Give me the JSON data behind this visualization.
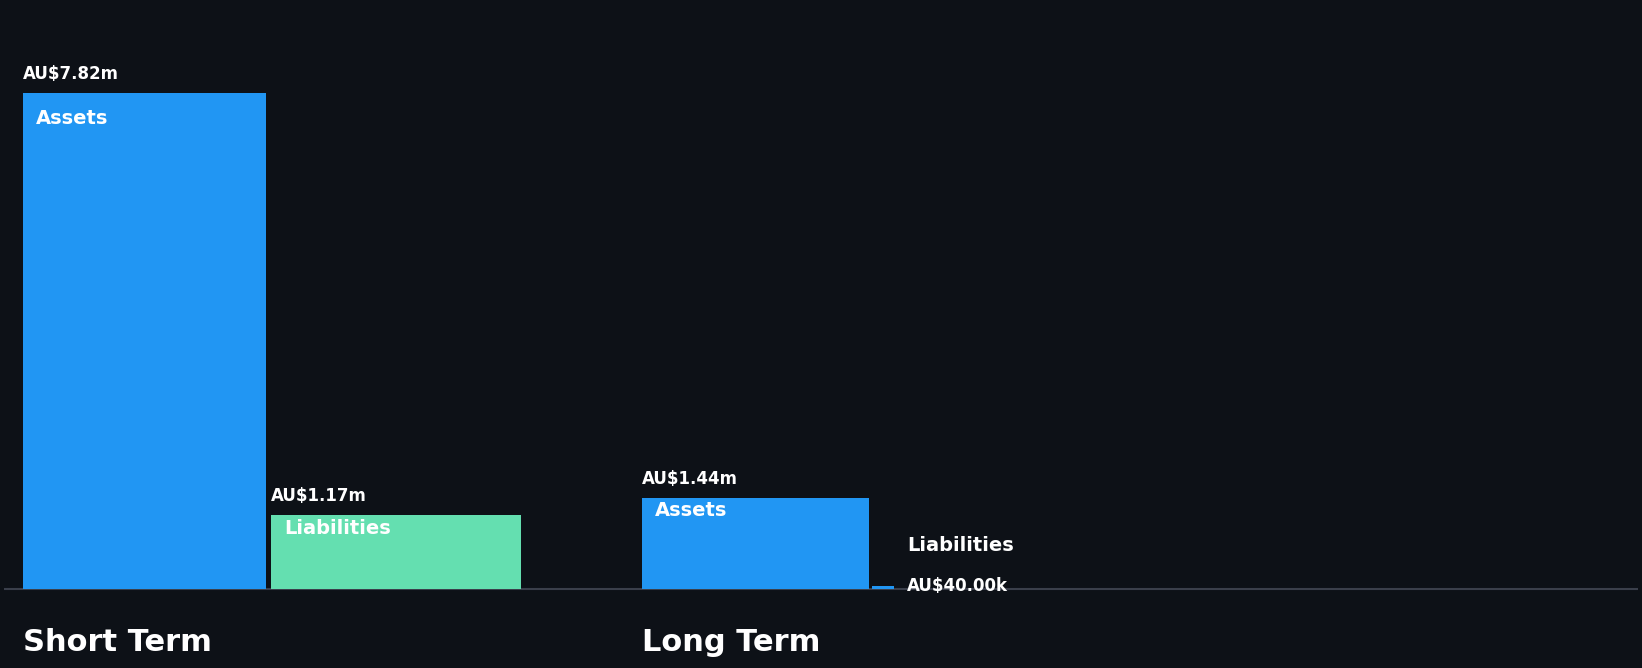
{
  "background_color": "#0d1117",
  "short_term": {
    "assets_value": 7.82,
    "assets_label": "AU$7.82m",
    "assets_color": "#2196f3",
    "liabilities_value": 1.17,
    "liabilities_label": "AU$1.17m",
    "liabilities_color": "#64dfb0",
    "section_label": "Short Term",
    "assets_text": "Assets",
    "liabilities_text": "Liabilities"
  },
  "long_term": {
    "assets_value": 1.44,
    "assets_label": "AU$1.44m",
    "assets_color": "#2196f3",
    "liabilities_value": 0.04,
    "liabilities_label": "AU$40.00k",
    "liabilities_color": "#2196f3",
    "section_label": "Long Term",
    "assets_text": "Assets",
    "liabilities_text": "Liabilities"
  },
  "text_color": "#ffffff",
  "label_fontsize": 12,
  "section_fontsize": 22,
  "inner_label_fontsize": 14,
  "max_value": 7.82,
  "hline_color": "#3a3f4b"
}
